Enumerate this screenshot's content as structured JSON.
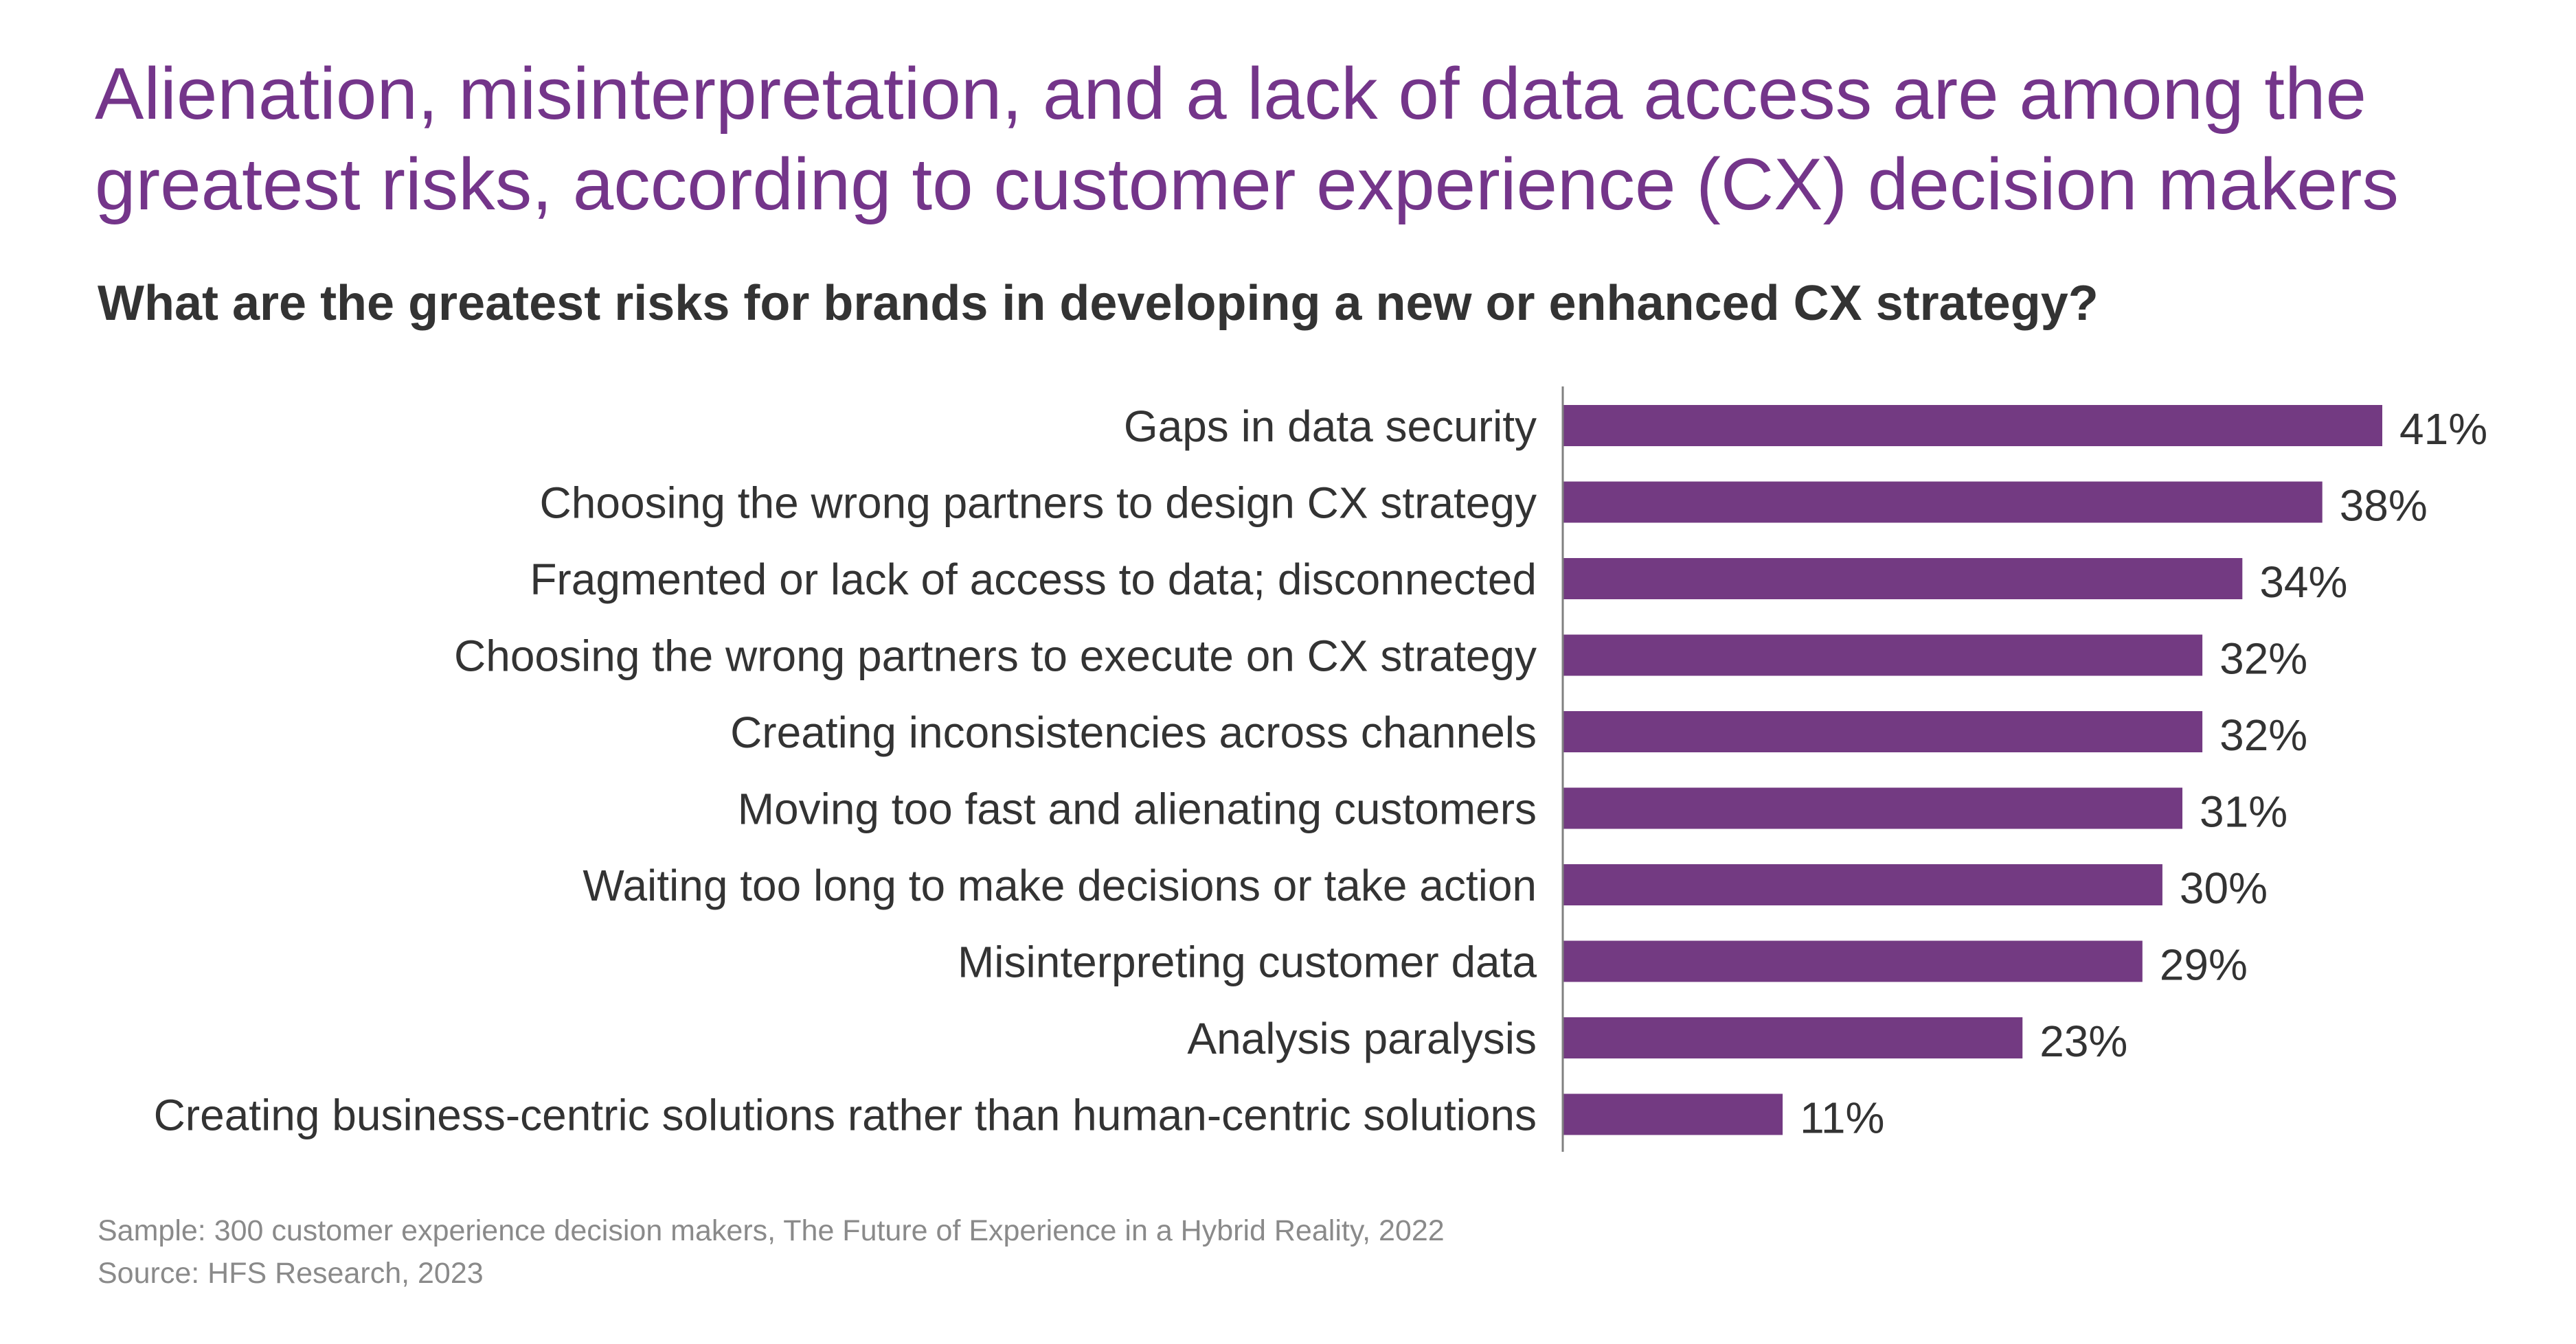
{
  "header": {
    "title_line1": "Alienation, misinterpretation, and a lack of data access are among the",
    "title_line2": "greatest risks, according to customer experience (CX) decision makers",
    "subtitle": "What are the greatest risks for brands in developing a new or enhanced CX strategy?"
  },
  "footer": {
    "sample": "Sample: 300 customer experience decision makers, The Future of Experience in a Hybrid Reality, 2022",
    "source": "Source: HFS Research, 2023"
  },
  "colors": {
    "title": "#74358a",
    "bar": "#733a82",
    "text": "#333333",
    "footnote": "#8a8a8a",
    "axis": "#808080"
  },
  "chart_data": {
    "type": "bar",
    "orientation": "horizontal",
    "title": "What are the greatest risks for brands in developing a new or enhanced CX strategy?",
    "categories": [
      "Gaps in data security",
      "Choosing the wrong partners to design CX strategy",
      "Fragmented or lack of access to data; disconnected",
      "Choosing the wrong partners to execute on CX strategy",
      "Creating inconsistencies across channels",
      "Moving too fast and alienating customers",
      "Waiting too long to make decisions or take action",
      "Misinterpreting customer data",
      "Analysis paralysis",
      "Creating business-centric solutions rather than human-centric solutions"
    ],
    "values": [
      41,
      38,
      34,
      32,
      32,
      31,
      30,
      29,
      23,
      11
    ],
    "value_labels": [
      "41%",
      "38%",
      "34%",
      "32%",
      "32%",
      "31%",
      "30%",
      "29%",
      "23%",
      "11%"
    ],
    "unit": "%",
    "xlim": [
      0,
      41
    ],
    "grid": false,
    "legend": "none",
    "xlabel": "",
    "ylabel": ""
  }
}
